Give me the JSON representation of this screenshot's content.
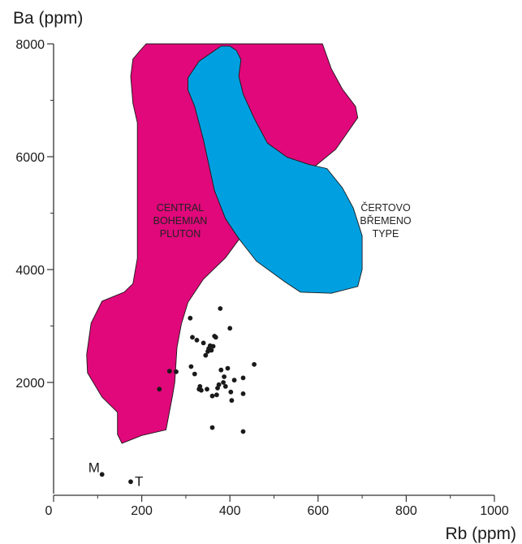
{
  "chart_data": {
    "type": "scatter",
    "title": "",
    "xlabel": "Rb (ppm)",
    "ylabel": "Ba (ppm)",
    "xlim": [
      0,
      1000
    ],
    "ylim": [
      0,
      8000
    ],
    "x_ticks": [
      "0",
      "200",
      "400",
      "600",
      "800",
      "1000"
    ],
    "y_ticks": [
      "2000",
      "4000",
      "6000",
      "8000"
    ],
    "grid": false,
    "colors": {
      "central_bohemian_pluton": "#e0087a",
      "certovo_bremeno_type": "#00a0e0",
      "points": "#1a1a1a",
      "axis": "#333333"
    },
    "regions": [
      {
        "name": "central_bohemian_pluton",
        "label_lines": [
          "CENTRAL",
          "BOHEMIAN",
          "PLUTON"
        ],
        "color": "#e0087a",
        "polygon": [
          [
            210,
            8000
          ],
          [
            610,
            8000
          ],
          [
            630,
            7560
          ],
          [
            655,
            7200
          ],
          [
            685,
            6890
          ],
          [
            690,
            6690
          ],
          [
            640,
            6130
          ],
          [
            560,
            5620
          ],
          [
            500,
            5200
          ],
          [
            440,
            4740
          ],
          [
            390,
            4210
          ],
          [
            340,
            3830
          ],
          [
            305,
            3420
          ],
          [
            290,
            3040
          ],
          [
            280,
            2620
          ],
          [
            275,
            2000
          ],
          [
            270,
            1770
          ],
          [
            255,
            1160
          ],
          [
            200,
            1060
          ],
          [
            155,
            920
          ],
          [
            145,
            1080
          ],
          [
            145,
            1470
          ],
          [
            110,
            1740
          ],
          [
            77,
            2170
          ],
          [
            75,
            2490
          ],
          [
            85,
            3050
          ],
          [
            110,
            3440
          ],
          [
            160,
            3600
          ],
          [
            180,
            3750
          ],
          [
            190,
            4200
          ],
          [
            190,
            4700
          ],
          [
            190,
            5600
          ],
          [
            190,
            6600
          ],
          [
            180,
            6950
          ],
          [
            175,
            7420
          ],
          [
            180,
            7730
          ],
          [
            195,
            7870
          ]
        ]
      },
      {
        "name": "certovo_bremeno_type",
        "label_lines": [
          "ČERTOVO",
          "BŘEMENO",
          "TYPE"
        ],
        "color": "#00a0e0",
        "polygon": [
          [
            400,
            7960
          ],
          [
            415,
            7880
          ],
          [
            425,
            7720
          ],
          [
            420,
            7430
          ],
          [
            430,
            7110
          ],
          [
            455,
            6680
          ],
          [
            485,
            6240
          ],
          [
            530,
            5990
          ],
          [
            580,
            5860
          ],
          [
            620,
            5790
          ],
          [
            655,
            5450
          ],
          [
            680,
            5090
          ],
          [
            700,
            4600
          ],
          [
            700,
            4000
          ],
          [
            690,
            3700
          ],
          [
            630,
            3580
          ],
          [
            560,
            3600
          ],
          [
            525,
            3780
          ],
          [
            460,
            4150
          ],
          [
            420,
            4550
          ],
          [
            390,
            4900
          ],
          [
            365,
            5400
          ],
          [
            340,
            6300
          ],
          [
            320,
            6890
          ],
          [
            305,
            7180
          ],
          [
            305,
            7400
          ],
          [
            330,
            7690
          ],
          [
            380,
            7960
          ]
        ]
      }
    ],
    "points": [
      [
        240,
        1880
      ],
      [
        263,
        2200
      ],
      [
        278,
        2190
      ],
      [
        310,
        3140
      ],
      [
        312,
        2280
      ],
      [
        315,
        2800
      ],
      [
        320,
        2150
      ],
      [
        325,
        2750
      ],
      [
        330,
        1880
      ],
      [
        332,
        1930
      ],
      [
        335,
        1860
      ],
      [
        340,
        2700
      ],
      [
        345,
        2480
      ],
      [
        348,
        1880
      ],
      [
        350,
        2550
      ],
      [
        352,
        2600
      ],
      [
        355,
        2650
      ],
      [
        358,
        2570
      ],
      [
        360,
        1760
      ],
      [
        362,
        2640
      ],
      [
        365,
        2820
      ],
      [
        368,
        2800
      ],
      [
        370,
        1780
      ],
      [
        372,
        1900
      ],
      [
        375,
        1960
      ],
      [
        378,
        3310
      ],
      [
        380,
        2220
      ],
      [
        385,
        2000
      ],
      [
        387,
        2100
      ],
      [
        390,
        1930
      ],
      [
        395,
        2250
      ],
      [
        400,
        2960
      ],
      [
        402,
        1830
      ],
      [
        404,
        1680
      ],
      [
        360,
        1200
      ],
      [
        410,
        2040
      ],
      [
        430,
        2080
      ],
      [
        430,
        1800
      ],
      [
        430,
        1130
      ],
      [
        455,
        2320
      ]
    ],
    "point_labels": [
      {
        "text": "M",
        "x": 110,
        "y": 370
      },
      {
        "text": "T",
        "x": 175,
        "y": 240
      }
    ]
  }
}
